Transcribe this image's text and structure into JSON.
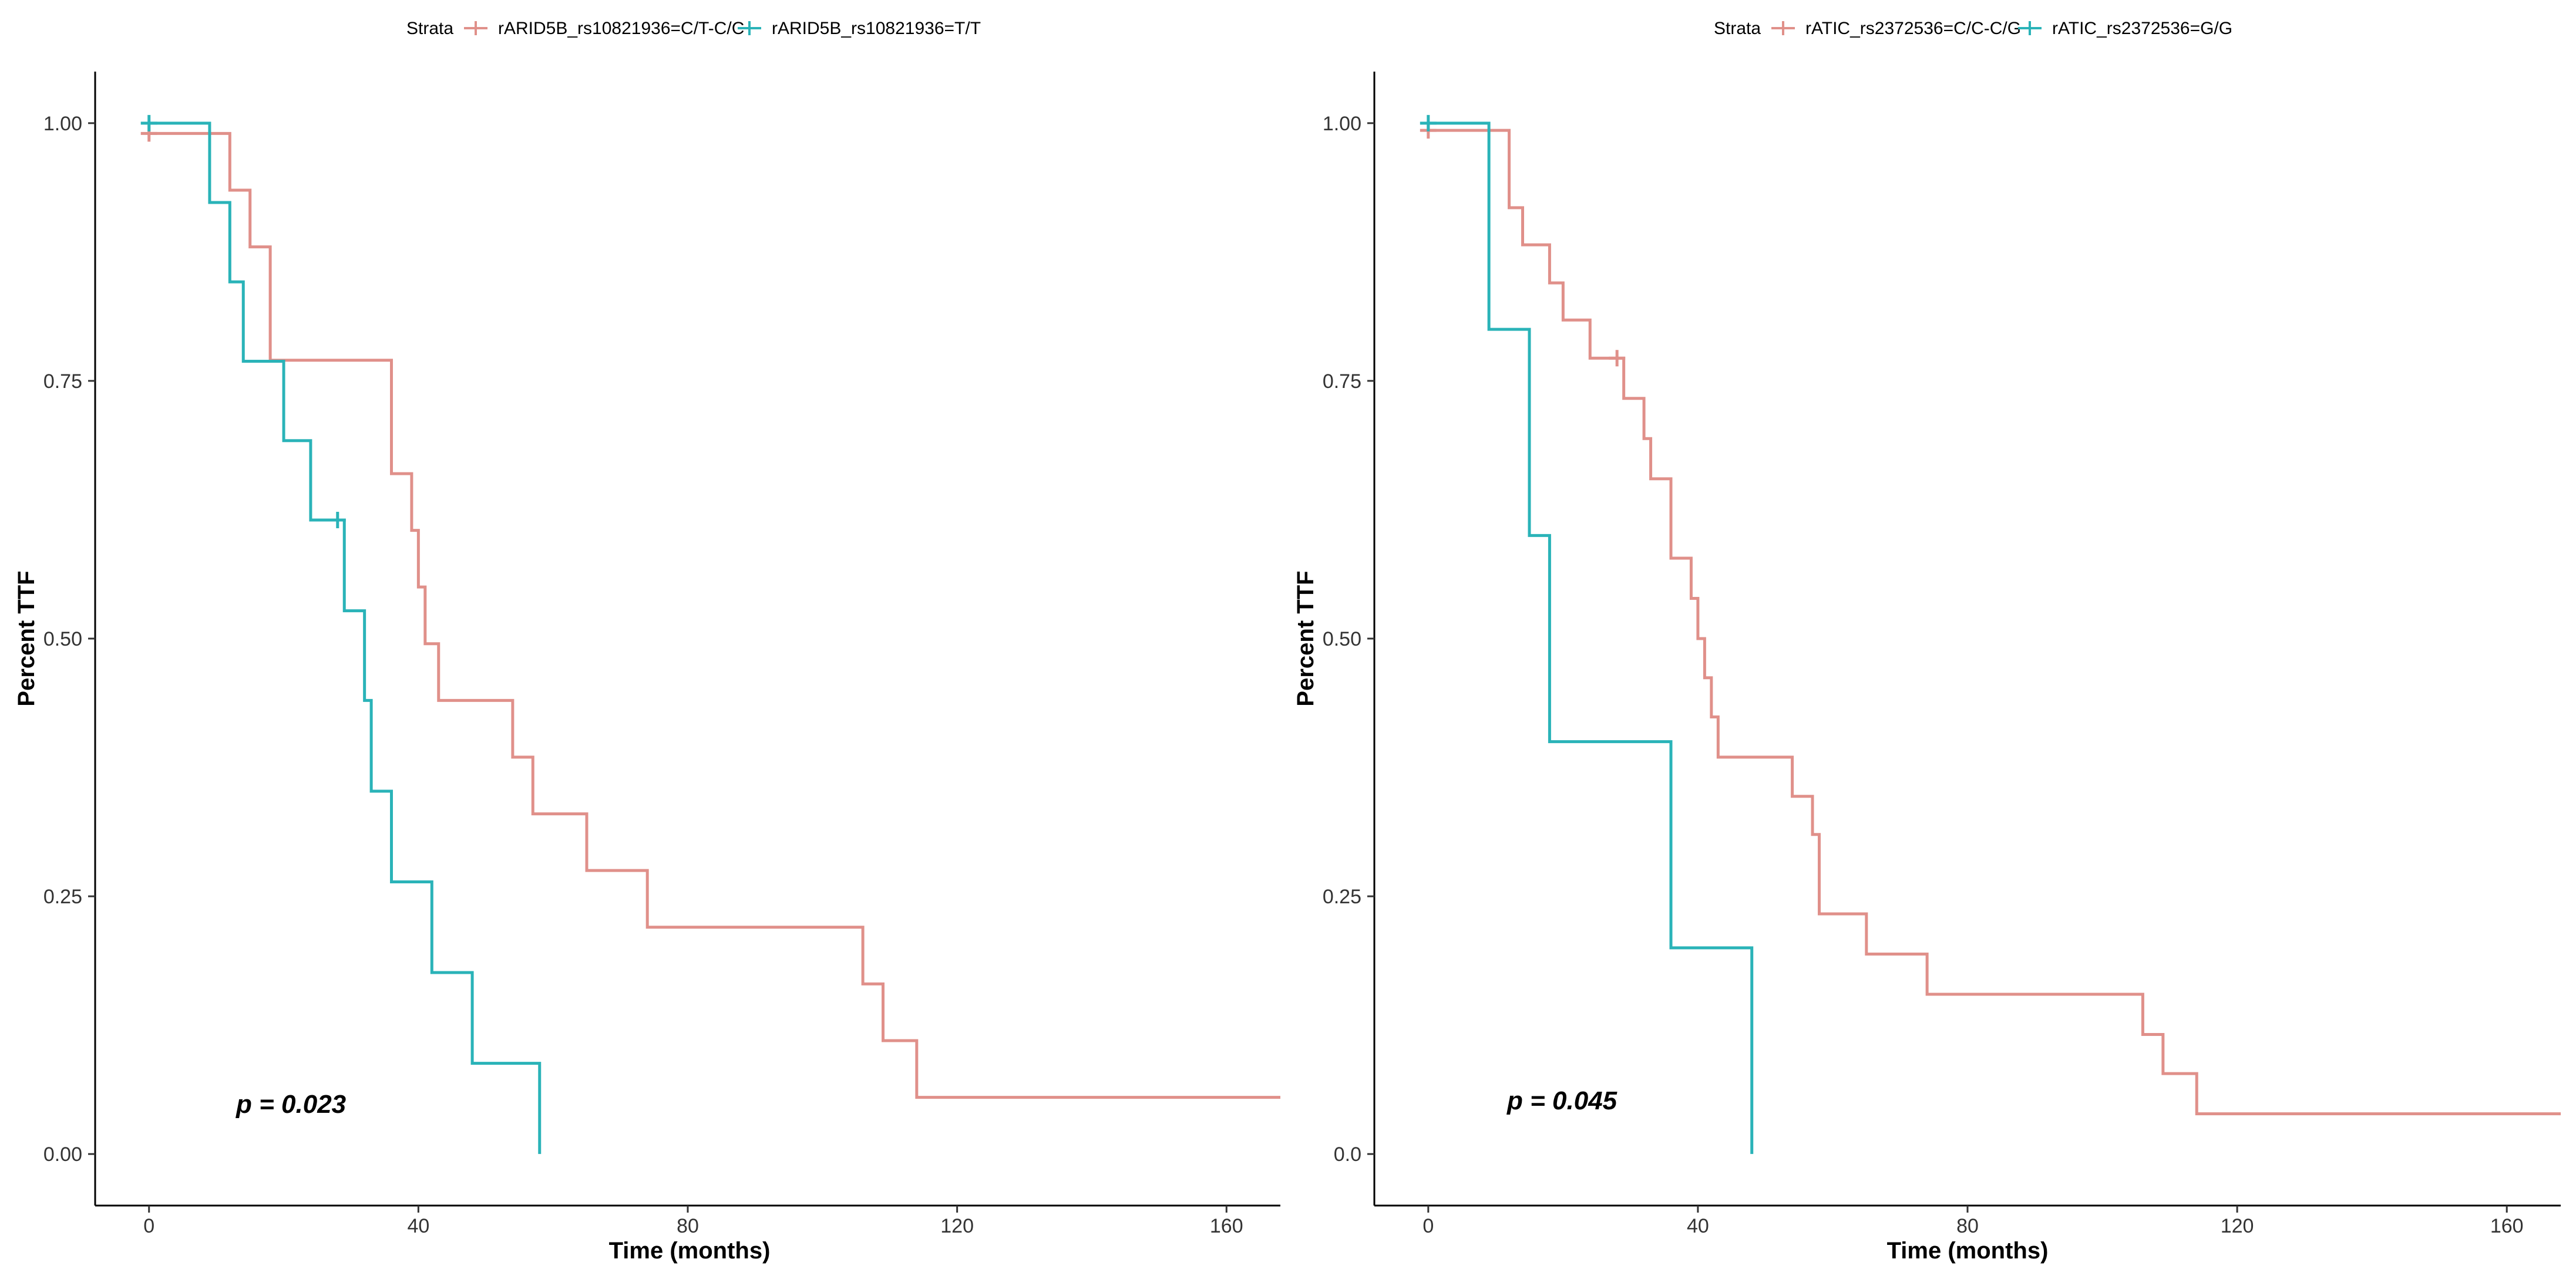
{
  "chart_data": [
    {
      "type": "line",
      "subtype": "kaplan-meier-step",
      "title": "",
      "legend_title": "Strata",
      "legend_position": "top",
      "xlabel": "Time (months)",
      "ylabel": "Percent TTF",
      "xlim": [
        -8,
        168
      ],
      "ylim": [
        -0.05,
        1.05
      ],
      "x_ticks": [
        0,
        40,
        80,
        120,
        160
      ],
      "x_tick_labels": [
        "0",
        "40",
        "80",
        "120",
        "160"
      ],
      "y_ticks": [
        0,
        0.25,
        0.5,
        0.75,
        1.0
      ],
      "y_tick_labels": [
        "0.00",
        "0.25",
        "0.50",
        "0.75",
        "1.00"
      ],
      "annotation": "p = 0.023",
      "series": [
        {
          "name": "rARID5B_rs10821936=C/T-C/C",
          "color": "#E0908A",
          "times": [
            0,
            12,
            15,
            18,
            36,
            39,
            40,
            41,
            43,
            54,
            57,
            65,
            74,
            106,
            109,
            114,
            168
          ],
          "survival": [
            0.99,
            0.935,
            0.88,
            0.77,
            0.66,
            0.605,
            0.55,
            0.495,
            0.44,
            0.385,
            0.33,
            0.275,
            0.22,
            0.165,
            0.11,
            0.055,
            0.055
          ],
          "censored": [
            {
              "x": 0,
              "y": 0.99
            }
          ]
        },
        {
          "name": "rARID5B_rs10821936=T/T",
          "color": "#2AB3B8",
          "times": [
            0,
            9,
            12,
            14,
            20,
            24,
            29,
            32,
            33,
            36,
            42,
            48,
            58
          ],
          "survival": [
            1.0,
            0.923,
            0.846,
            0.769,
            0.692,
            0.615,
            0.527,
            0.44,
            0.352,
            0.264,
            0.176,
            0.088,
            0.0
          ],
          "censored": [
            {
              "x": 0,
              "y": 1.0
            },
            {
              "x": 28,
              "y": 0.615
            }
          ]
        }
      ]
    },
    {
      "type": "line",
      "subtype": "kaplan-meier-step",
      "title": "",
      "legend_title": "Strata",
      "legend_position": "top",
      "xlabel": "Time (months)",
      "ylabel": "Percent TTF",
      "xlim": [
        -8,
        168
      ],
      "ylim": [
        -0.05,
        1.05
      ],
      "x_ticks": [
        0,
        40,
        80,
        120,
        160
      ],
      "x_tick_labels": [
        "0",
        "40",
        "80",
        "120",
        "160"
      ],
      "y_ticks": [
        0,
        0.25,
        0.5,
        0.75,
        1.0
      ],
      "y_tick_labels": [
        "0.0",
        "0.25",
        "0.50",
        "0.75",
        "1.00"
      ],
      "annotation": "p = 0.045",
      "series": [
        {
          "name": "rATIC_rs2372536=C/C-C/G",
          "color": "#E0908A",
          "times": [
            0,
            12,
            14,
            18,
            20,
            24,
            29,
            32,
            33,
            36,
            39,
            40,
            41,
            42,
            43,
            54,
            57,
            58,
            65,
            74,
            106,
            109,
            114,
            168
          ],
          "survival": [
            0.993,
            0.918,
            0.882,
            0.845,
            0.809,
            0.772,
            0.733,
            0.694,
            0.655,
            0.578,
            0.539,
            0.5,
            0.462,
            0.424,
            0.385,
            0.347,
            0.31,
            0.233,
            0.194,
            0.155,
            0.116,
            0.078,
            0.039,
            0.039
          ],
          "censored": [
            {
              "x": 0,
              "y": 0.993
            },
            {
              "x": 28,
              "y": 0.772
            }
          ]
        },
        {
          "name": "rATIC_rs2372536=G/G",
          "color": "#2AB3B8",
          "times": [
            0,
            9,
            15,
            18,
            36,
            48
          ],
          "survival": [
            1.0,
            0.8,
            0.6,
            0.4,
            0.2,
            0.0
          ],
          "censored": [
            {
              "x": 0,
              "y": 1.0
            }
          ]
        }
      ]
    }
  ]
}
